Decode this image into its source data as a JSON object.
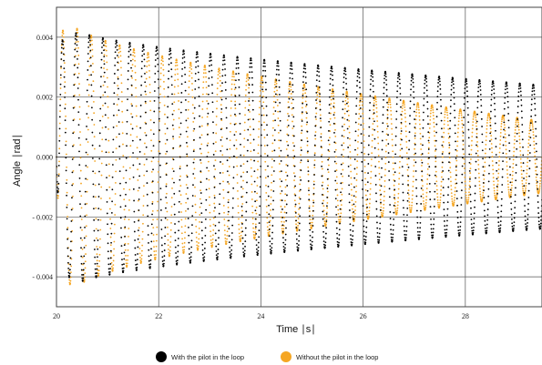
{
  "chart_data": {
    "type": "scatter",
    "xlabel": "Time ∣s∣",
    "ylabel": "Angle ∣rad∣",
    "xlim": [
      20,
      29.5
    ],
    "ylim": [
      -0.005,
      0.005
    ],
    "x_ticks": [
      {
        "value": 20,
        "label": "20"
      },
      {
        "value": 22,
        "label": "22"
      },
      {
        "value": 24,
        "label": "24"
      },
      {
        "value": 26,
        "label": "26"
      },
      {
        "value": 28,
        "label": "28"
      }
    ],
    "y_ticks": [
      {
        "value": 0.004,
        "label": "0.004"
      },
      {
        "value": 0.002,
        "label": "0.002"
      },
      {
        "value": 0.0,
        "label": "0.000"
      },
      {
        "value": -0.002,
        "label": "- 0.002"
      },
      {
        "value": -0.004,
        "label": "- 0.004"
      }
    ],
    "grid": true,
    "legend_position": "bottom-center",
    "series": [
      {
        "name": "With the pilot in the loop",
        "color": "#000000",
        "marker": "dot",
        "model": {
          "frequency_hz": 3.8,
          "amplitude_start": 0.0038,
          "amplitude_end": 0.0024,
          "peak_time": 20.45,
          "peak_amplitude": 0.0042
        },
        "envelope": [
          {
            "x": 20.1,
            "max": 0.0037,
            "min": -0.0033
          },
          {
            "x": 20.45,
            "max": 0.0042,
            "min": -0.0035
          },
          {
            "x": 21.0,
            "max": 0.0036,
            "min": -0.0034
          },
          {
            "x": 22.0,
            "max": 0.0032,
            "min": -0.003
          },
          {
            "x": 24.0,
            "max": 0.0028,
            "min": -0.0027
          },
          {
            "x": 26.0,
            "max": 0.0026,
            "min": -0.0025
          },
          {
            "x": 28.0,
            "max": 0.0024,
            "min": -0.0024
          },
          {
            "x": 29.5,
            "max": 0.0023,
            "min": -0.0023
          }
        ]
      },
      {
        "name": "Without the pilot in the loop",
        "color": "#F5A623",
        "marker": "dot",
        "model": {
          "frequency_hz": 3.6,
          "amplitude_start": 0.0042,
          "amplitude_end": 0.0012,
          "peak_time": 20.45,
          "peak_amplitude": 0.0043
        },
        "envelope": [
          {
            "x": 20.1,
            "max": 0.0037,
            "min": -0.0035
          },
          {
            "x": 20.45,
            "max": 0.0043,
            "min": -0.0036
          },
          {
            "x": 21.0,
            "max": 0.0042,
            "min": -0.0035
          },
          {
            "x": 22.0,
            "max": 0.0036,
            "min": -0.0031
          },
          {
            "x": 24.0,
            "max": 0.0025,
            "min": -0.0023
          },
          {
            "x": 26.0,
            "max": 0.0018,
            "min": -0.0017
          },
          {
            "x": 28.0,
            "max": 0.0014,
            "min": -0.0013
          },
          {
            "x": 29.5,
            "max": 0.0012,
            "min": -0.0012
          }
        ]
      }
    ]
  }
}
